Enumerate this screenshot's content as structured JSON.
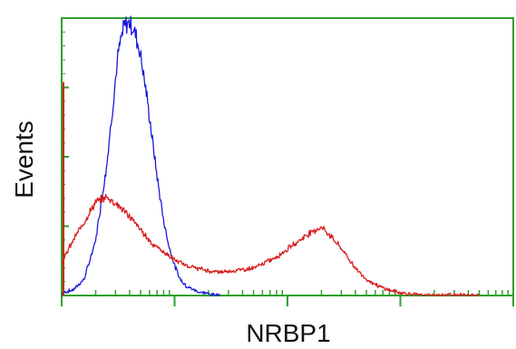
{
  "chart_data": {
    "type": "line",
    "xlabel": "NRBP1",
    "ylabel": "Events",
    "x_scale": "log",
    "x_range_decades": [
      0,
      4
    ],
    "y_range": [
      0,
      1
    ],
    "grid": false,
    "legend": "none",
    "colors": {
      "frame": "#2ea02e",
      "blue_series": "#1a1adc",
      "red_series": "#d81c1c"
    },
    "series": [
      {
        "color": "#1a1adc",
        "x": [
          0.0,
          0.1,
          0.2,
          0.3,
          0.4,
          0.45,
          0.5,
          0.55,
          0.6,
          0.65,
          0.7,
          0.75,
          0.8,
          0.85,
          0.9,
          0.95,
          1.0,
          1.05,
          1.1,
          1.2,
          1.3,
          1.4
        ],
        "y": [
          0.01,
          0.02,
          0.06,
          0.2,
          0.48,
          0.68,
          0.88,
          0.98,
          1.0,
          0.96,
          0.88,
          0.74,
          0.58,
          0.42,
          0.28,
          0.18,
          0.11,
          0.06,
          0.035,
          0.015,
          0.006,
          0.0
        ]
      },
      {
        "color": "#d81c1c",
        "x": [
          0.0,
          0.1,
          0.2,
          0.3,
          0.4,
          0.5,
          0.6,
          0.7,
          0.8,
          0.9,
          1.0,
          1.1,
          1.2,
          1.3,
          1.4,
          1.5,
          1.6,
          1.7,
          1.8,
          1.9,
          2.0,
          2.1,
          2.2,
          2.3,
          2.4,
          2.5,
          2.6,
          2.7,
          2.8,
          2.9,
          3.0,
          3.1,
          3.2,
          3.3,
          3.5,
          3.7
        ],
        "y": [
          0.12,
          0.2,
          0.27,
          0.34,
          0.36,
          0.33,
          0.29,
          0.24,
          0.19,
          0.16,
          0.13,
          0.11,
          0.1,
          0.09,
          0.085,
          0.09,
          0.095,
          0.1,
          0.12,
          0.14,
          0.17,
          0.2,
          0.23,
          0.25,
          0.21,
          0.16,
          0.1,
          0.06,
          0.035,
          0.02,
          0.01,
          0.005,
          0.0,
          0.0,
          0.003,
          0.0
        ]
      }
    ]
  }
}
